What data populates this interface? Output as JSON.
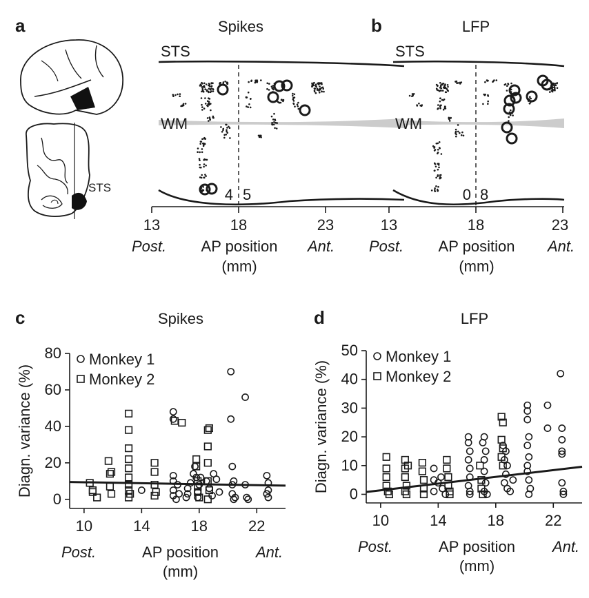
{
  "colors": {
    "ink": "#1a1a1a",
    "wm_band": "#cccccc",
    "lesion": "#111111"
  },
  "labels": {
    "a": "a",
    "b": "b",
    "c": "c",
    "d": "d",
    "spikes": "Spikes",
    "lfp": "LFP",
    "sts": "STS",
    "wm": "WM",
    "post": "Post.",
    "ant": "Ant.",
    "ap": "AP position",
    "mm": "(mm)",
    "ylabel": "Diagn. variance (%)",
    "m1": "Monkey 1",
    "m2": "Monkey 2",
    "sts_small": "STS"
  },
  "map_a": {
    "x_ticks": [
      "13",
      "18",
      "23"
    ],
    "n_left": "4",
    "n_right": "5"
  },
  "map_b": {
    "x_ticks": [
      "13",
      "18",
      "23"
    ],
    "n_left": "0",
    "n_right": "8"
  },
  "chart_data": [
    {
      "panel": "c",
      "type": "scatter",
      "title": "Spikes",
      "xlabel": "AP position (mm)",
      "ylabel": "Diagn. variance (%)",
      "xlim": [
        9,
        24
      ],
      "ylim": [
        -5,
        80
      ],
      "x_ticks": [
        10,
        14,
        18,
        22
      ],
      "y_ticks": [
        0,
        20,
        40,
        60,
        80
      ],
      "legend": "top-left",
      "series": [
        {
          "name": "Monkey 1",
          "marker": "circle",
          "points": [
            [
              14,
              5
            ],
            [
              16.2,
              48
            ],
            [
              16.2,
              44
            ],
            [
              16.2,
              5
            ],
            [
              16.2,
              2
            ],
            [
              16.2,
              10
            ],
            [
              16.2,
              13
            ],
            [
              16.4,
              0
            ],
            [
              16.5,
              8
            ],
            [
              16.6,
              3
            ],
            [
              17.1,
              1
            ],
            [
              17.2,
              3
            ],
            [
              17.2,
              6
            ],
            [
              17.4,
              9
            ],
            [
              17.6,
              14
            ],
            [
              17.7,
              18
            ],
            [
              17.8,
              12
            ],
            [
              17.9,
              4
            ],
            [
              17.9,
              1
            ],
            [
              18,
              8
            ],
            [
              18.1,
              12
            ],
            [
              18.5,
              10
            ],
            [
              18.7,
              6
            ],
            [
              18.9,
              2
            ],
            [
              19,
              14
            ],
            [
              19.2,
              11
            ],
            [
              19.4,
              4
            ],
            [
              20.2,
              70
            ],
            [
              20.2,
              44
            ],
            [
              20.3,
              18
            ],
            [
              20.4,
              10
            ],
            [
              20.3,
              8
            ],
            [
              20.3,
              3
            ],
            [
              20.4,
              0
            ],
            [
              20.5,
              1
            ],
            [
              21.2,
              56
            ],
            [
              21.2,
              8
            ],
            [
              21.3,
              1
            ],
            [
              21.4,
              0
            ],
            [
              22.7,
              13
            ],
            [
              22.8,
              9
            ],
            [
              22.8,
              5
            ],
            [
              22.7,
              3
            ],
            [
              22.8,
              1
            ]
          ]
        },
        {
          "name": "Monkey 2",
          "marker": "square",
          "points": [
            [
              10.4,
              9
            ],
            [
              10.6,
              5
            ],
            [
              10.6,
              4
            ],
            [
              10.9,
              1
            ],
            [
              11.7,
              21
            ],
            [
              11.9,
              15
            ],
            [
              11.8,
              7
            ],
            [
              11.9,
              3
            ],
            [
              11.8,
              14
            ],
            [
              13.1,
              47
            ],
            [
              13.1,
              38
            ],
            [
              13.1,
              28
            ],
            [
              13.1,
              22
            ],
            [
              13.1,
              17
            ],
            [
              13.1,
              12
            ],
            [
              13.1,
              8
            ],
            [
              13.1,
              5
            ],
            [
              13.1,
              1
            ],
            [
              13.2,
              3
            ],
            [
              14.9,
              20
            ],
            [
              14.9,
              15
            ],
            [
              14.9,
              8
            ],
            [
              15,
              4
            ],
            [
              14.9,
              2
            ],
            [
              16.3,
              43
            ],
            [
              16.8,
              42
            ],
            [
              17.8,
              22
            ],
            [
              17.8,
              18
            ],
            [
              17.9,
              10
            ],
            [
              17.9,
              4
            ],
            [
              18,
              1
            ],
            [
              17.9,
              7
            ],
            [
              18.6,
              38
            ],
            [
              18.7,
              39
            ],
            [
              18.6,
              29
            ],
            [
              18.6,
              20
            ],
            [
              18.6,
              10
            ],
            [
              18.7,
              5
            ],
            [
              18.6,
              0
            ]
          ]
        }
      ],
      "fit_line": {
        "x": [
          9,
          24
        ],
        "y": [
          9.5,
          7.5
        ]
      }
    },
    {
      "panel": "d",
      "type": "scatter",
      "title": "LFP",
      "xlabel": "AP position (mm)",
      "ylabel": "Diagn. variance (%)",
      "xlim": [
        9,
        24
      ],
      "ylim": [
        -3,
        50
      ],
      "x_ticks": [
        10,
        14,
        18,
        22
      ],
      "y_ticks": [
        0,
        10,
        20,
        30,
        40,
        50
      ],
      "legend": "top-left",
      "series": [
        {
          "name": "Monkey 1",
          "marker": "circle",
          "points": [
            [
              13.7,
              9
            ],
            [
              13.7,
              5
            ],
            [
              13.7,
              1
            ],
            [
              14,
              4
            ],
            [
              14.2,
              6
            ],
            [
              14.3,
              2
            ],
            [
              14.5,
              0
            ],
            [
              16.1,
              20
            ],
            [
              16.1,
              18
            ],
            [
              16.2,
              15
            ],
            [
              16.1,
              12
            ],
            [
              16.2,
              9
            ],
            [
              16.2,
              6
            ],
            [
              16.1,
              3
            ],
            [
              16.2,
              1
            ],
            [
              16.2,
              0
            ],
            [
              17.2,
              20
            ],
            [
              17.1,
              18
            ],
            [
              17.3,
              15
            ],
            [
              17.2,
              12
            ],
            [
              17.2,
              8
            ],
            [
              17.3,
              4
            ],
            [
              17.2,
              1
            ],
            [
              17.4,
              0
            ],
            [
              18.5,
              17
            ],
            [
              18.7,
              15
            ],
            [
              18.6,
              12
            ],
            [
              18.8,
              10
            ],
            [
              18.7,
              7
            ],
            [
              18.6,
              4
            ],
            [
              18.8,
              2
            ],
            [
              19,
              1
            ],
            [
              19.2,
              5
            ],
            [
              20.2,
              31
            ],
            [
              20.2,
              29
            ],
            [
              20.2,
              26
            ],
            [
              20.3,
              20
            ],
            [
              20.2,
              17
            ],
            [
              20.3,
              13
            ],
            [
              20.2,
              10
            ],
            [
              20.2,
              8
            ],
            [
              20.3,
              5
            ],
            [
              20.4,
              2
            ],
            [
              20.3,
              0
            ],
            [
              21.6,
              31
            ],
            [
              21.6,
              23
            ],
            [
              22.5,
              42
            ],
            [
              22.6,
              23
            ],
            [
              22.6,
              19
            ],
            [
              22.6,
              15
            ],
            [
              22.6,
              14
            ],
            [
              22.6,
              4
            ],
            [
              22.7,
              1
            ],
            [
              22.7,
              0
            ]
          ]
        },
        {
          "name": "Monkey 2",
          "marker": "square",
          "points": [
            [
              10.4,
              13
            ],
            [
              10.4,
              9
            ],
            [
              10.4,
              6
            ],
            [
              10.4,
              3
            ],
            [
              10.5,
              1
            ],
            [
              10.6,
              0
            ],
            [
              11.7,
              12
            ],
            [
              11.7,
              9
            ],
            [
              11.7,
              6
            ],
            [
              11.8,
              3
            ],
            [
              11.7,
              1
            ],
            [
              11.8,
              0
            ],
            [
              11.9,
              10
            ],
            [
              12.9,
              11
            ],
            [
              12.9,
              8
            ],
            [
              13,
              5
            ],
            [
              13,
              2
            ],
            [
              13,
              0
            ],
            [
              14.6,
              12
            ],
            [
              14.6,
              9
            ],
            [
              14.7,
              6
            ],
            [
              14.7,
              3
            ],
            [
              14.8,
              1
            ],
            [
              14.8,
              0
            ],
            [
              17,
              5
            ],
            [
              17,
              2
            ],
            [
              17.1,
              0
            ],
            [
              16.9,
              10
            ],
            [
              18.4,
              27
            ],
            [
              18.5,
              25
            ],
            [
              18.4,
              19
            ],
            [
              18.5,
              16
            ],
            [
              18.4,
              13
            ],
            [
              18.5,
              10
            ]
          ]
        }
      ],
      "fit_line": {
        "x": [
          9,
          24
        ],
        "y": [
          0.8,
          9.6
        ]
      }
    }
  ]
}
